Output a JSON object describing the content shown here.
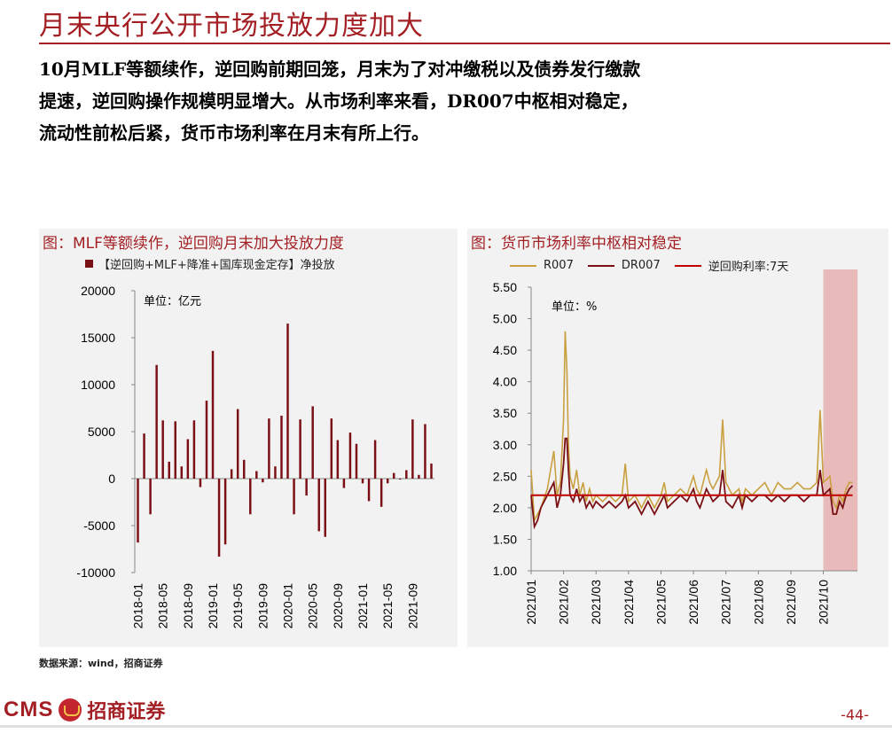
{
  "page": {
    "title": "月末央行公开市场投放力度加大",
    "body_lines": [
      "10月MLF等额续作，逆回购前期回笼，月末为了对冲缴税以及债券发行缴款",
      "提速，逆回购操作规模明显增大。从市场利率来看，DR007中枢相对稳定，",
      "流动性前松后紧，货币市场利率在月末有所上行。"
    ],
    "source": "数据来源：wind，招商证券",
    "page_number": "-44-",
    "logo": {
      "cms": "CMS",
      "cn": "招商证券"
    }
  },
  "colors": {
    "brand": "#a31f24",
    "dr007": "#7a1015",
    "r007": "#c9a040",
    "policy": "#c00000",
    "shade": "#e8b0b0"
  },
  "chart_data": [
    {
      "type": "bar",
      "title": "图：MLF等额续作，逆回购月末加大投放力度",
      "unit": "单位：亿元",
      "legend": "【逆回购+MLF+降准+国库现金定存】净投放",
      "series": [
        {
          "name": "【逆回购+MLF+降准+国库现金定存】净投放",
          "values": [
            -6800,
            4800,
            -3800,
            12100,
            6200,
            1800,
            6100,
            1300,
            4200,
            6200,
            -900,
            8300,
            13600,
            -8300,
            -7000,
            1000,
            7400,
            2000,
            -3800,
            800,
            -400,
            6400,
            1300,
            6700,
            16500,
            -3800,
            6300,
            -1800,
            7700,
            -5600,
            -6200,
            6400,
            4100,
            -1000,
            4900,
            3700,
            -500,
            -2400,
            4100,
            -3000,
            -500,
            600,
            -100,
            900,
            6300,
            400,
            5800,
            1600
          ]
        }
      ],
      "x_tick_labels": [
        "2018-01",
        "2018-05",
        "2018-09",
        "2019-01",
        "2019-05",
        "2019-09",
        "2020-01",
        "2020-05",
        "2020-09",
        "2021-01",
        "2021-05",
        "2021-09"
      ],
      "ylim": [
        -10000,
        20000
      ],
      "y_ticks": [
        20000,
        15000,
        10000,
        5000,
        0,
        -5000,
        -10000
      ]
    },
    {
      "type": "line",
      "title": "图：货币市场利率中枢相对稳定",
      "unit": "单位：%",
      "x_tick_labels": [
        "2021/01",
        "2021/02",
        "2021/03",
        "2021/04",
        "2021/05",
        "2021/06",
        "2021/07",
        "2021/08",
        "2021/09",
        "2021/10"
      ],
      "ylim": [
        1.0,
        5.5
      ],
      "y_ticks": [
        "5.50",
        "5.00",
        "4.50",
        "4.00",
        "3.50",
        "3.00",
        "2.50",
        "2.00",
        "1.50",
        "1.00"
      ],
      "shaded_period": "2021/10",
      "series": [
        {
          "name": "R007",
          "points": [
            [
              0.0,
              2.6
            ],
            [
              0.1,
              1.8
            ],
            [
              0.2,
              1.9
            ],
            [
              0.3,
              2.0
            ],
            [
              0.5,
              2.3
            ],
            [
              0.7,
              2.9
            ],
            [
              0.8,
              2.2
            ],
            [
              0.9,
              2.4
            ],
            [
              1.0,
              3.4
            ],
            [
              1.05,
              4.8
            ],
            [
              1.1,
              4.2
            ],
            [
              1.15,
              3.0
            ],
            [
              1.2,
              2.5
            ],
            [
              1.3,
              2.3
            ],
            [
              1.4,
              2.6
            ],
            [
              1.5,
              2.2
            ],
            [
              1.6,
              2.4
            ],
            [
              1.7,
              2.1
            ],
            [
              1.8,
              2.3
            ],
            [
              1.9,
              2.1
            ],
            [
              2.0,
              2.2
            ],
            [
              2.2,
              2.1
            ],
            [
              2.4,
              2.2
            ],
            [
              2.6,
              2.1
            ],
            [
              2.8,
              2.2
            ],
            [
              2.9,
              2.7
            ],
            [
              3.0,
              2.1
            ],
            [
              3.2,
              2.2
            ],
            [
              3.4,
              2.0
            ],
            [
              3.5,
              2.1
            ],
            [
              3.6,
              2.2
            ],
            [
              3.8,
              2.0
            ],
            [
              4.0,
              2.2
            ],
            [
              4.1,
              2.4
            ],
            [
              4.2,
              2.1
            ],
            [
              4.4,
              2.2
            ],
            [
              4.6,
              2.3
            ],
            [
              4.8,
              2.2
            ],
            [
              5.0,
              2.5
            ],
            [
              5.1,
              2.3
            ],
            [
              5.2,
              2.2
            ],
            [
              5.4,
              2.6
            ],
            [
              5.5,
              2.4
            ],
            [
              5.6,
              2.3
            ],
            [
              5.8,
              2.5
            ],
            [
              5.9,
              3.4
            ],
            [
              6.0,
              2.4
            ],
            [
              6.2,
              2.2
            ],
            [
              6.4,
              2.3
            ],
            [
              6.5,
              2.1
            ],
            [
              6.6,
              2.3
            ],
            [
              6.8,
              2.2
            ],
            [
              7.0,
              2.3
            ],
            [
              7.2,
              2.4
            ],
            [
              7.4,
              2.2
            ],
            [
              7.6,
              2.4
            ],
            [
              7.8,
              2.3
            ],
            [
              8.0,
              2.3
            ],
            [
              8.2,
              2.4
            ],
            [
              8.4,
              2.3
            ],
            [
              8.6,
              2.3
            ],
            [
              8.8,
              2.4
            ],
            [
              8.9,
              3.55
            ],
            [
              9.0,
              2.4
            ],
            [
              9.2,
              2.5
            ],
            [
              9.3,
              2.1
            ],
            [
              9.4,
              2.0
            ],
            [
              9.5,
              2.2
            ],
            [
              9.6,
              2.1
            ],
            [
              9.7,
              2.3
            ],
            [
              9.8,
              2.4
            ],
            [
              9.9,
              2.4
            ]
          ]
        },
        {
          "name": "DR007",
          "points": [
            [
              0.0,
              2.2
            ],
            [
              0.1,
              1.7
            ],
            [
              0.2,
              1.8
            ],
            [
              0.3,
              2.0
            ],
            [
              0.5,
              2.2
            ],
            [
              0.7,
              2.4
            ],
            [
              0.8,
              2.0
            ],
            [
              0.9,
              2.2
            ],
            [
              1.0,
              2.7
            ],
            [
              1.05,
              3.1
            ],
            [
              1.1,
              3.1
            ],
            [
              1.15,
              2.6
            ],
            [
              1.2,
              2.2
            ],
            [
              1.3,
              2.1
            ],
            [
              1.4,
              2.3
            ],
            [
              1.5,
              2.1
            ],
            [
              1.6,
              2.2
            ],
            [
              1.7,
              2.0
            ],
            [
              1.8,
              2.1
            ],
            [
              1.9,
              2.0
            ],
            [
              2.0,
              2.1
            ],
            [
              2.2,
              2.0
            ],
            [
              2.4,
              2.1
            ],
            [
              2.6,
              2.0
            ],
            [
              2.8,
              2.1
            ],
            [
              2.9,
              2.2
            ],
            [
              3.0,
              2.0
            ],
            [
              3.2,
              2.1
            ],
            [
              3.4,
              1.9
            ],
            [
              3.5,
              2.0
            ],
            [
              3.6,
              2.1
            ],
            [
              3.8,
              1.9
            ],
            [
              4.0,
              2.1
            ],
            [
              4.1,
              2.2
            ],
            [
              4.2,
              2.0
            ],
            [
              4.4,
              2.1
            ],
            [
              4.6,
              2.2
            ],
            [
              4.8,
              2.1
            ],
            [
              5.0,
              2.3
            ],
            [
              5.1,
              2.1
            ],
            [
              5.2,
              2.0
            ],
            [
              5.4,
              2.3
            ],
            [
              5.5,
              2.2
            ],
            [
              5.6,
              2.1
            ],
            [
              5.8,
              2.2
            ],
            [
              5.9,
              2.6
            ],
            [
              6.0,
              2.1
            ],
            [
              6.2,
              2.0
            ],
            [
              6.4,
              2.2
            ],
            [
              6.5,
              2.0
            ],
            [
              6.6,
              2.2
            ],
            [
              6.8,
              2.1
            ],
            [
              7.0,
              2.2
            ],
            [
              7.2,
              2.2
            ],
            [
              7.4,
              2.1
            ],
            [
              7.6,
              2.2
            ],
            [
              7.8,
              2.1
            ],
            [
              8.0,
              2.2
            ],
            [
              8.2,
              2.2
            ],
            [
              8.4,
              2.1
            ],
            [
              8.6,
              2.2
            ],
            [
              8.8,
              2.2
            ],
            [
              8.9,
              2.6
            ],
            [
              9.0,
              2.2
            ],
            [
              9.2,
              2.3
            ],
            [
              9.3,
              1.9
            ],
            [
              9.4,
              1.9
            ],
            [
              9.5,
              2.1
            ],
            [
              9.6,
              2.0
            ],
            [
              9.7,
              2.2
            ],
            [
              9.8,
              2.3
            ],
            [
              9.9,
              2.35
            ]
          ]
        },
        {
          "name": "逆回购利率:7天",
          "points": [
            [
              0.0,
              2.2
            ],
            [
              9.9,
              2.2
            ]
          ]
        }
      ]
    }
  ]
}
